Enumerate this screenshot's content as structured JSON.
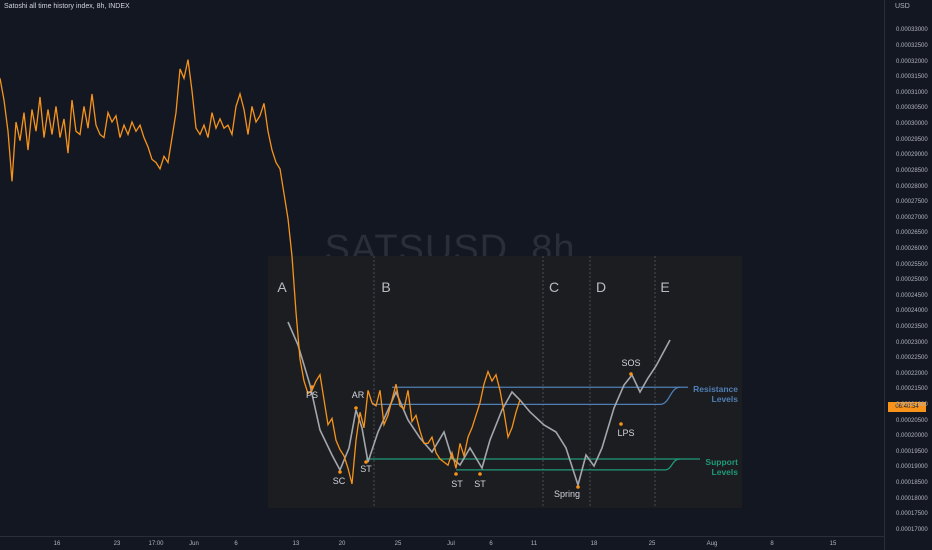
{
  "header": {
    "title": "Satoshi all time history index, 8h, INDEX",
    "currency": "USD",
    "watermark": "SATSUSD, 8h"
  },
  "price_tag": "06:40:54",
  "colors": {
    "price_line": "#f7931a",
    "schematic": "#a3a6ad",
    "resistance": "#4f7fb5",
    "support": "#1e9a7a",
    "panel": "#1c1d20"
  },
  "chart_data": {
    "type": "line",
    "title": "Satoshi all time history index, 8h, INDEX",
    "ylabel": "USD",
    "ylim": [
      0.000168,
      0.000334
    ],
    "y_ticks": [
      "0.00033000",
      "0.00032500",
      "0.00032000",
      "0.00031500",
      "0.00031000",
      "0.00030500",
      "0.00030000",
      "0.00029500",
      "0.00029000",
      "0.00028500",
      "0.00028000",
      "0.00027500",
      "0.00027000",
      "0.00026500",
      "0.00026000",
      "0.00025500",
      "0.00025000",
      "0.00024500",
      "0.00024000",
      "0.00023500",
      "0.00023000",
      "0.00022500",
      "0.00022000",
      "0.00021500",
      "0.00021000",
      "0.00020500",
      "0.00020000",
      "0.00019500",
      "0.00019000",
      "0.00018500",
      "0.00018000",
      "0.00017500",
      "0.00017000"
    ],
    "x_ticks": [
      "16",
      "23",
      "17:00",
      "Jun",
      "6",
      "13",
      "20",
      "25",
      "Jul",
      "6",
      "11",
      "18",
      "25",
      "Aug",
      "8",
      "15"
    ],
    "series": [
      {
        "type": "price",
        "x": [
          0,
          4,
          8,
          12,
          16,
          20,
          24,
          28,
          32,
          36,
          40,
          44,
          48,
          52,
          56,
          60,
          64,
          68,
          72,
          76,
          80,
          84,
          88,
          92,
          96,
          100,
          104,
          108,
          112,
          116,
          120,
          124,
          128,
          132,
          136,
          140,
          144,
          148,
          152,
          156,
          160,
          164,
          168,
          172,
          176,
          180,
          184,
          188,
          192,
          196,
          200,
          204,
          208,
          212,
          216,
          220,
          224,
          228,
          232,
          236,
          240,
          244,
          248,
          252,
          256,
          260,
          264,
          268,
          272,
          276,
          280,
          284,
          288,
          292,
          296,
          300,
          304,
          308,
          312,
          316,
          320,
          324,
          328,
          332,
          336,
          340,
          344,
          348,
          352,
          356,
          360,
          364,
          368,
          372,
          376,
          380,
          384,
          388,
          392,
          396,
          400,
          404,
          408,
          412,
          416,
          420,
          424,
          428,
          432,
          436,
          440,
          444,
          448,
          452,
          456,
          460,
          464,
          468,
          472,
          476,
          480,
          484,
          488,
          492,
          496,
          500,
          504,
          508,
          512,
          516,
          520
        ],
        "y": [
          0.000315,
          0.000308,
          0.000298,
          0.000282,
          0.000301,
          0.000295,
          0.000304,
          0.000292,
          0.000305,
          0.000298,
          0.000309,
          0.000296,
          0.000305,
          0.000297,
          0.000306,
          0.000296,
          0.000302,
          0.000291,
          0.000308,
          0.000298,
          0.000297,
          0.000306,
          0.000299,
          0.00031,
          0.0003,
          0.000297,
          0.000296,
          0.000304,
          0.000301,
          0.000303,
          0.000296,
          0.0003,
          0.000297,
          0.000301,
          0.000298,
          0.0003,
          0.000296,
          0.000293,
          0.000289,
          0.000288,
          0.000286,
          0.00029,
          0.000288,
          0.000296,
          0.000304,
          0.000318,
          0.000315,
          0.000321,
          0.000311,
          0.000299,
          0.000297,
          0.0003,
          0.000296,
          0.000304,
          0.000299,
          0.000302,
          0.000299,
          0.0003,
          0.000297,
          0.000306,
          0.00031,
          0.000305,
          0.000297,
          0.000306,
          0.000301,
          0.000303,
          0.000307,
          0.000298,
          0.000292,
          0.000288,
          0.000286,
          0.000278,
          0.00027,
          0.000258,
          0.00024,
          0.000225,
          0.000218,
          0.000214,
          0.000215,
          0.000218,
          0.00022,
          0.000212,
          0.000204,
          0.000206,
          0.000199,
          0.000196,
          0.000194,
          0.00019,
          0.000185,
          0.000199,
          0.000208,
          0.000203,
          0.000215,
          0.000211,
          0.00021,
          0.000215,
          0.000204,
          0.000207,
          0.000212,
          0.000217,
          0.00021,
          0.000209,
          0.000215,
          0.000205,
          0.000207,
          0.000202,
          0.000198,
          0.000198,
          0.0002,
          0.000195,
          0.000193,
          0.000192,
          0.000191,
          0.000195,
          0.00019,
          0.000198,
          0.000194,
          0.0002,
          0.000203,
          0.000207,
          0.000211,
          0.000217,
          0.000221,
          0.000218,
          0.00022,
          0.000215,
          0.000208,
          0.0002,
          0.000203,
          0.000208,
          0.000212
        ]
      }
    ],
    "annotations": {
      "phases": [
        "A",
        "B",
        "C",
        "D",
        "E"
      ],
      "events": [
        "PS",
        "AR",
        "SC",
        "ST",
        "ST",
        "ST",
        "Spring",
        "LPS",
        "SOS"
      ],
      "levels": [
        "Resistance\nLevels",
        "Support\nLevels"
      ]
    }
  }
}
